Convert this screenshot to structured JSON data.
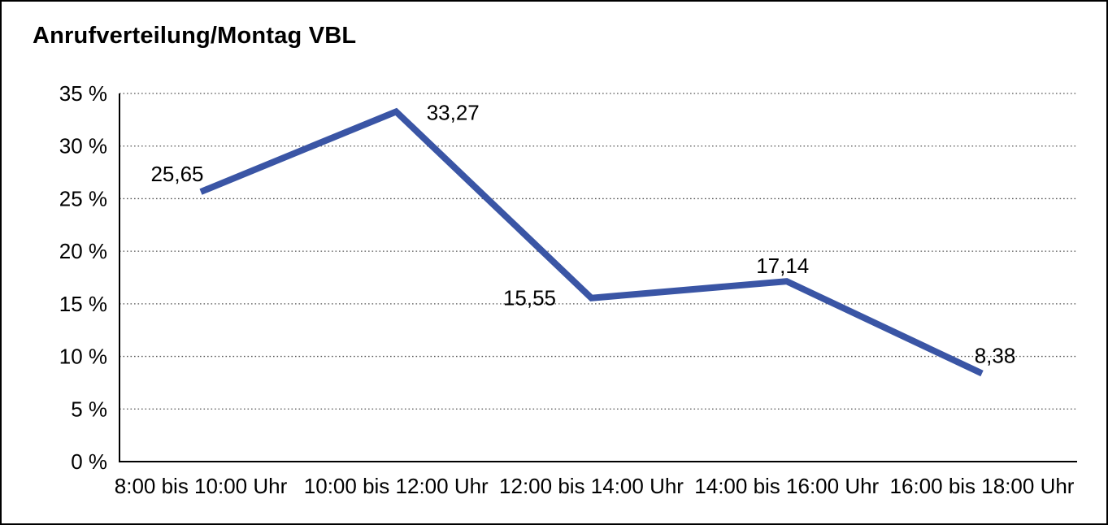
{
  "chart_data": {
    "type": "line",
    "title": "Anrufverteilung/Montag VBL",
    "categories": [
      "8:00 bis 10:00 Uhr",
      "10:00 bis 12:00 Uhr",
      "12:00 bis 14:00 Uhr",
      "14:00 bis 16:00 Uhr",
      "16:00 bis 18:00 Uhr"
    ],
    "values": [
      25.65,
      33.27,
      15.55,
      17.14,
      8.38
    ],
    "data_labels": [
      "25,65",
      "33,27",
      "15,55",
      "17,14",
      "8,38"
    ],
    "y_tick_values": [
      0,
      5,
      10,
      15,
      20,
      25,
      30,
      35
    ],
    "y_tick_labels": [
      "0 %",
      "5 %",
      "10 %",
      "15 %",
      "20 %",
      "25 %",
      "30 %",
      "35 %"
    ],
    "ylim": [
      0,
      35
    ],
    "xlabel": "",
    "ylabel": "",
    "legend": "none",
    "grid": "horizontal-dotted",
    "colors": {
      "line": "#3a55a5",
      "axis": "#000000",
      "gridline": "#555555",
      "text": "#000000",
      "background": "#ffffff"
    }
  }
}
